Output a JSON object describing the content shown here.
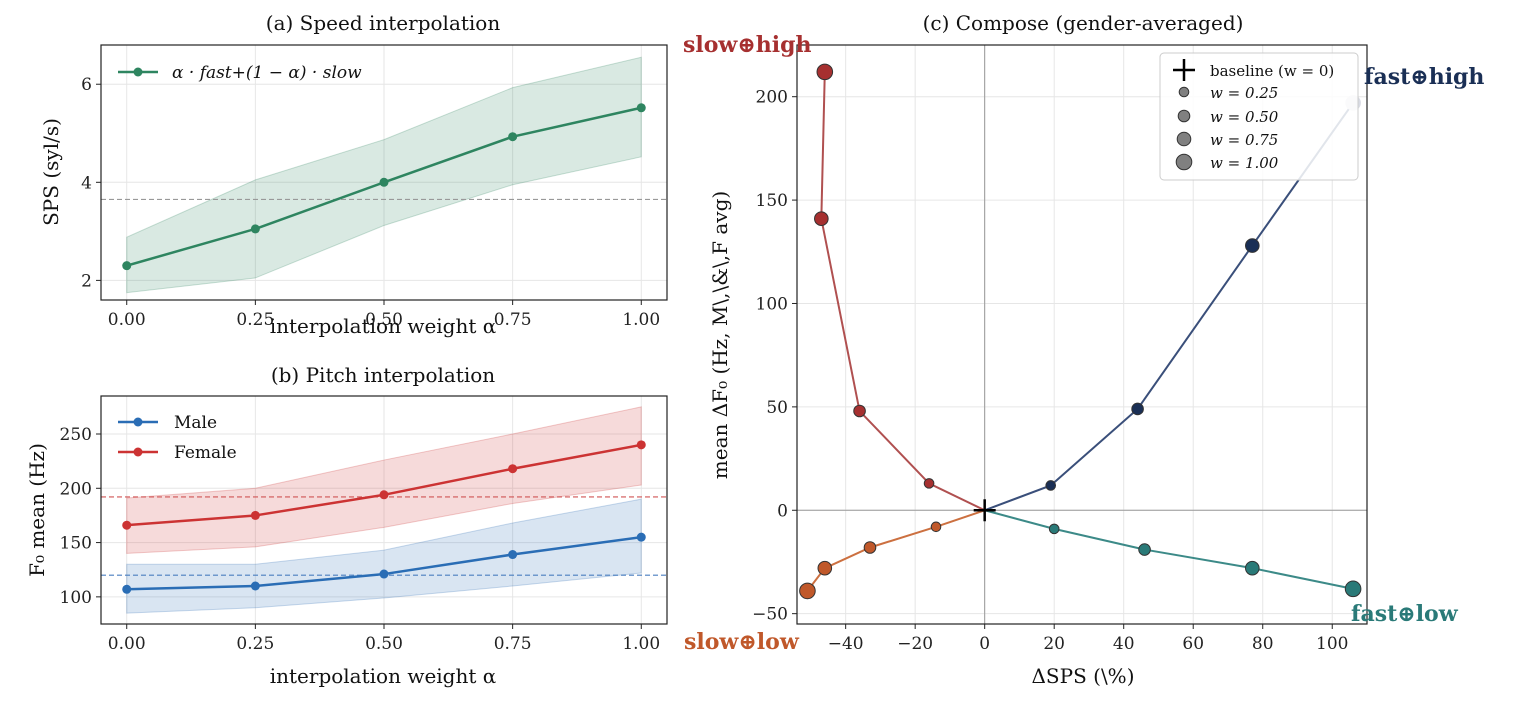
{
  "chart_data": [
    {
      "type": "line",
      "title": "(a) Speed interpolation",
      "xlabel": "interpolation weight α",
      "ylabel": "SPS (syl/s)",
      "x": [
        0.0,
        0.25,
        0.5,
        0.75,
        1.0
      ],
      "x_ticks": [
        "0.00",
        "0.25",
        "0.50",
        "0.75",
        "1.00"
      ],
      "y_ticks": [
        "2",
        "4",
        "6"
      ],
      "xlim": [
        -0.05,
        1.05
      ],
      "ylim": [
        1.6,
        6.8
      ],
      "grid": true,
      "legend_position": "top-left",
      "series": [
        {
          "name": "α · fast+(1 − α) · slow",
          "color": "#2e8560",
          "values": [
            2.3,
            3.05,
            4.0,
            4.93,
            5.52
          ],
          "band_low": [
            1.75,
            2.05,
            3.12,
            3.95,
            4.52
          ],
          "band_high": [
            2.88,
            4.05,
            4.87,
            5.93,
            6.55
          ]
        }
      ],
      "reference_lines": [
        {
          "y": 3.65,
          "color": "#999999",
          "style": "dashed"
        }
      ]
    },
    {
      "type": "line",
      "title": "(b) Pitch interpolation",
      "xlabel": "interpolation weight α",
      "ylabel": "F₀ mean (Hz)",
      "x": [
        0.0,
        0.25,
        0.5,
        0.75,
        1.0
      ],
      "x_ticks": [
        "0.00",
        "0.25",
        "0.50",
        "0.75",
        "1.00"
      ],
      "y_ticks": [
        "100",
        "150",
        "200",
        "250"
      ],
      "xlim": [
        -0.05,
        1.05
      ],
      "ylim": [
        75,
        285
      ],
      "grid": true,
      "legend_position": "top-left",
      "series": [
        {
          "name": "Male",
          "color": "#2a6db5",
          "values": [
            107,
            110,
            121,
            139,
            155
          ],
          "band_low": [
            85,
            90,
            99,
            110,
            122
          ],
          "band_high": [
            130,
            130,
            143,
            168,
            190
          ]
        },
        {
          "name": "Female",
          "color": "#cc3333",
          "values": [
            166,
            175,
            194,
            218,
            240
          ],
          "band_low": [
            140,
            146,
            164,
            186,
            203
          ],
          "band_high": [
            191,
            200,
            226,
            250,
            275
          ]
        }
      ],
      "reference_lines": [
        {
          "y": 120,
          "color": "#4a7fc0",
          "style": "dashed"
        },
        {
          "y": 192,
          "color": "#d05555",
          "style": "dashed"
        }
      ]
    },
    {
      "type": "scatter",
      "title": "(c) Compose (gender-averaged)",
      "xlabel": "ΔSPS (\\%)",
      "ylabel": "mean ΔF₀ (Hz, M\\,\\&\\,F avg)",
      "x_ticks": [
        "−40",
        "−20",
        "0",
        "20",
        "40",
        "60",
        "80",
        "100"
      ],
      "y_ticks": [
        "−50",
        "0",
        "50",
        "100",
        "150",
        "200"
      ],
      "xlim": [
        -54,
        110
      ],
      "ylim": [
        -55,
        225
      ],
      "grid": true,
      "legend_position": "top-right",
      "legend": {
        "baseline": "baseline (w = 0)",
        "sizes": [
          "w = 0.25",
          "w = 0.50",
          "w = 0.75",
          "w = 1.00"
        ]
      },
      "weights": [
        0.25,
        0.5,
        0.75,
        1.0
      ],
      "series": [
        {
          "name": "slow⊕high",
          "color": "#a63030",
          "line_color": "#b05050",
          "points": [
            [
              -16,
              13
            ],
            [
              -36,
              48
            ],
            [
              -47,
              141
            ],
            [
              -46,
              212
            ]
          ]
        },
        {
          "name": "fast⊕high",
          "color": "#1a2f55",
          "line_color": "#3a4f7a",
          "points": [
            [
              19,
              12
            ],
            [
              44,
              49
            ],
            [
              77,
              128
            ],
            [
              106,
              197
            ]
          ]
        },
        {
          "name": "slow⊕low",
          "color": "#c0582a",
          "line_color": "#cc7040",
          "points": [
            [
              -14,
              -8
            ],
            [
              -33,
              -18
            ],
            [
              -46,
              -28
            ],
            [
              -51,
              -39
            ]
          ]
        },
        {
          "name": "fast⊕low",
          "color": "#2a7a78",
          "line_color": "#3c8a88",
          "points": [
            [
              20,
              -9
            ],
            [
              46,
              -19
            ],
            [
              77,
              -28
            ],
            [
              106,
              -38
            ]
          ]
        }
      ],
      "last_fast_high_color": "#d9dbe4"
    }
  ]
}
